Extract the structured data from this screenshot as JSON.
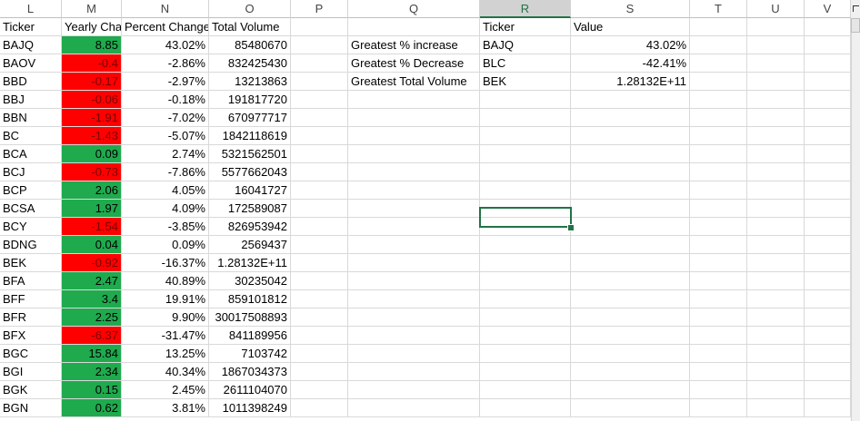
{
  "columns": [
    "L",
    "M",
    "N",
    "O",
    "P",
    "Q",
    "R",
    "S",
    "T",
    "U",
    "V"
  ],
  "headers": {
    "ticker": "Ticker",
    "yearly_change": "Yearly Cha",
    "percent_change": "Percent Change",
    "total_volume": "Total Volume"
  },
  "rows": [
    {
      "ticker": "BAJQ",
      "change": "8.85",
      "change_sign": "pos",
      "percent": "43.02%",
      "volume": "85480670"
    },
    {
      "ticker": "BAOV",
      "change": "-0.4",
      "change_sign": "neg",
      "percent": "-2.86%",
      "volume": "832425430"
    },
    {
      "ticker": "BBD",
      "change": "-0.17",
      "change_sign": "neg",
      "percent": "-2.97%",
      "volume": "13213863"
    },
    {
      "ticker": "BBJ",
      "change": "-0.06",
      "change_sign": "neg",
      "percent": "-0.18%",
      "volume": "191817720"
    },
    {
      "ticker": "BBN",
      "change": "-1.91",
      "change_sign": "neg",
      "percent": "-7.02%",
      "volume": "670977717"
    },
    {
      "ticker": "BC",
      "change": "-1.43",
      "change_sign": "neg",
      "percent": "-5.07%",
      "volume": "1842118619"
    },
    {
      "ticker": "BCA",
      "change": "0.09",
      "change_sign": "pos",
      "percent": "2.74%",
      "volume": "5321562501"
    },
    {
      "ticker": "BCJ",
      "change": "-0.73",
      "change_sign": "neg",
      "percent": "-7.86%",
      "volume": "5577662043"
    },
    {
      "ticker": "BCP",
      "change": "2.06",
      "change_sign": "pos",
      "percent": "4.05%",
      "volume": "16041727"
    },
    {
      "ticker": "BCSA",
      "change": "1.97",
      "change_sign": "pos",
      "percent": "4.09%",
      "volume": "172589087"
    },
    {
      "ticker": "BCY",
      "change": "-1.54",
      "change_sign": "neg",
      "percent": "-3.85%",
      "volume": "826953942"
    },
    {
      "ticker": "BDNG",
      "change": "0.04",
      "change_sign": "pos",
      "percent": "0.09%",
      "volume": "2569437"
    },
    {
      "ticker": "BEK",
      "change": "-0.92",
      "change_sign": "neg",
      "percent": "-16.37%",
      "volume": "1.28132E+11"
    },
    {
      "ticker": "BFA",
      "change": "2.47",
      "change_sign": "pos",
      "percent": "40.89%",
      "volume": "30235042"
    },
    {
      "ticker": "BFF",
      "change": "3.4",
      "change_sign": "pos",
      "percent": "19.91%",
      "volume": "859101812"
    },
    {
      "ticker": "BFR",
      "change": "2.25",
      "change_sign": "pos",
      "percent": "9.90%",
      "volume": "30017508893"
    },
    {
      "ticker": "BFX",
      "change": "-6.37",
      "change_sign": "neg",
      "percent": "-31.47%",
      "volume": "841189956"
    },
    {
      "ticker": "BGC",
      "change": "15.84",
      "change_sign": "pos",
      "percent": "13.25%",
      "volume": "7103742"
    },
    {
      "ticker": "BGI",
      "change": "2.34",
      "change_sign": "pos",
      "percent": "40.34%",
      "volume": "1867034373"
    },
    {
      "ticker": "BGK",
      "change": "0.15",
      "change_sign": "pos",
      "percent": "2.45%",
      "volume": "2611104070"
    },
    {
      "ticker": "BGN",
      "change": "0.62",
      "change_sign": "pos",
      "percent": "3.81%",
      "volume": "1011398249"
    }
  ],
  "summary": {
    "ticker_header": "Ticker",
    "value_header": "Value",
    "items": [
      {
        "label": "Greatest % increase",
        "ticker": "BAJQ",
        "value": "43.02%"
      },
      {
        "label": "Greatest % Decrease",
        "ticker": "BLC",
        "value": "-42.41%"
      },
      {
        "label": "Greatest Total Volume",
        "ticker": "BEK",
        "value": "1.28132E+11"
      }
    ]
  },
  "colors": {
    "positive_fill": "#1faa4e",
    "negative_fill": "#ff0000",
    "selection": "#217346"
  },
  "selected_column": "R"
}
